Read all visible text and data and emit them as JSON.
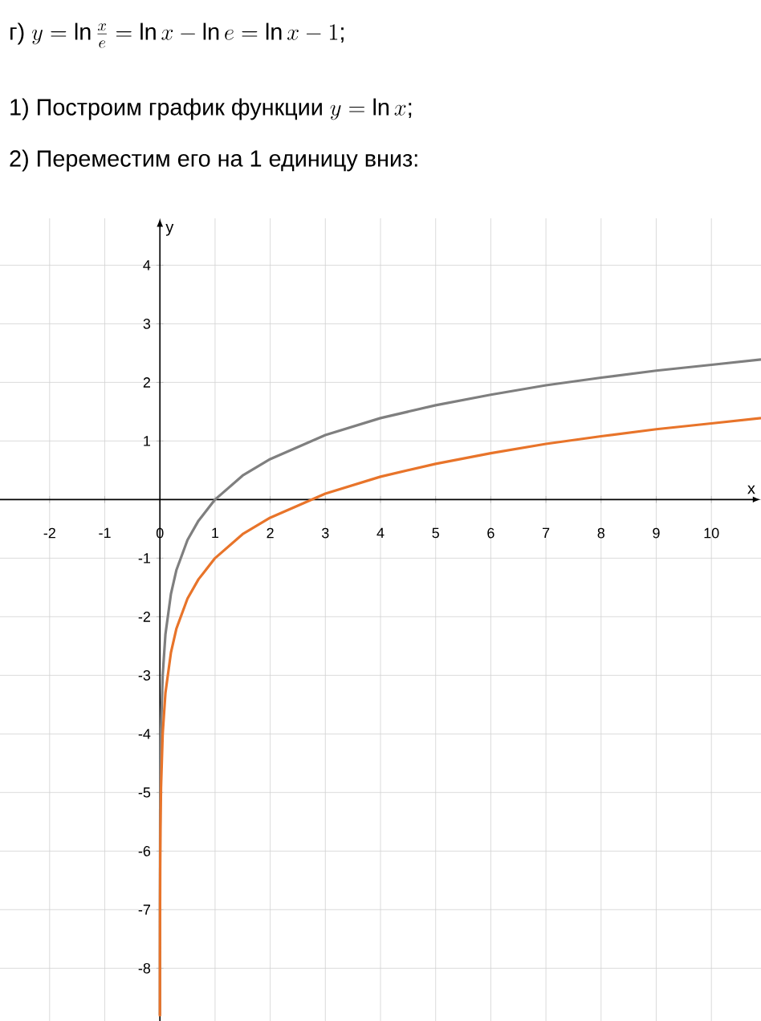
{
  "chart_data": {
    "type": "line",
    "annotations": [
      "г)",
      "y=\\ln\\frac{x}{e}=\\ln x-\\ln e=\\ln x-1",
      ";",
      "1) Построим график функции",
      "y=\\ln x",
      ";",
      "2) Переместим его на 1 единицу вниз:"
    ],
    "xlabel": "x",
    "ylabel": "y",
    "xlim": [
      -2.9,
      10.9
    ],
    "ylim": [
      -8.9,
      4.8
    ],
    "xticks": [
      -2,
      -1,
      0,
      1,
      2,
      3,
      4,
      5,
      6,
      7,
      8,
      9,
      10
    ],
    "yticks": [
      -8,
      -7,
      -6,
      -5,
      -4,
      -3,
      -2,
      -1,
      1,
      2,
      3,
      4
    ],
    "grid": true,
    "marker": "none",
    "series": [
      {
        "color": "#7f7f7f",
        "x": [
          0.00015,
          0.001,
          0.005,
          0.01,
          0.02,
          0.05,
          0.1,
          0.2,
          0.3,
          0.5,
          0.7,
          1,
          1.5,
          2,
          3,
          4,
          5,
          6,
          7,
          8,
          9,
          10,
          10.9
        ],
        "values": [
          -8.8,
          -6.91,
          -5.3,
          -4.61,
          -3.91,
          -3.0,
          -2.3,
          -1.61,
          -1.2,
          -0.69,
          -0.36,
          0,
          0.41,
          0.69,
          1.1,
          1.39,
          1.61,
          1.79,
          1.95,
          2.08,
          2.2,
          2.3,
          2.39
        ]
      },
      {
        "color": "#e8742a",
        "x": [
          0.0004,
          0.001,
          0.002,
          0.005,
          0.01,
          0.02,
          0.05,
          0.1,
          0.2,
          0.3,
          0.5,
          0.7,
          1,
          1.5,
          2,
          3,
          4,
          5,
          6,
          7,
          8,
          9,
          10,
          10.9
        ],
        "values": [
          -8.82,
          -7.91,
          -7.21,
          -6.3,
          -5.61,
          -4.91,
          -4.0,
          -3.3,
          -2.61,
          -2.2,
          -1.69,
          -1.36,
          -1,
          -0.59,
          -0.31,
          0.1,
          0.39,
          0.61,
          0.79,
          0.95,
          1.08,
          1.2,
          1.3,
          1.39
        ]
      }
    ]
  }
}
